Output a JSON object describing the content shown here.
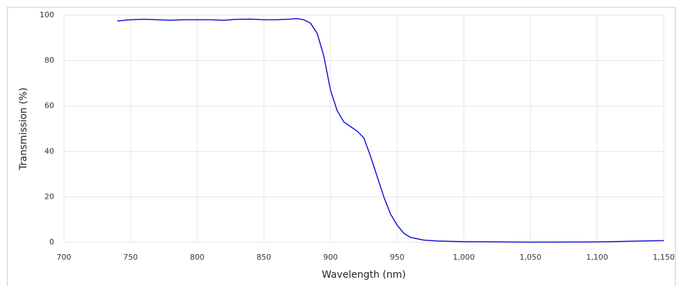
{
  "chart_data": {
    "type": "line",
    "x_label": "Wavelength (nm)",
    "y_label": "Transmission (%)",
    "xlim": [
      700,
      1150
    ],
    "ylim": [
      0,
      100
    ],
    "xticks": [
      700,
      750,
      800,
      850,
      900,
      950,
      {
        "value": 1000,
        "label": "1,000"
      },
      {
        "value": 1050,
        "label": "1,050"
      },
      {
        "value": 1100,
        "label": "1,100"
      },
      {
        "value": 1150,
        "label": "1,150"
      }
    ],
    "yticks": [
      0,
      20,
      40,
      60,
      80,
      100
    ],
    "grid": true,
    "x": [
      740,
      750,
      760,
      770,
      780,
      790,
      800,
      810,
      820,
      830,
      840,
      850,
      860,
      870,
      875,
      880,
      885,
      890,
      895,
      900,
      905,
      910,
      915,
      920,
      925,
      930,
      935,
      940,
      945,
      950,
      955,
      960,
      970,
      980,
      1000,
      1050,
      1100,
      1150
    ],
    "series": [
      {
        "color": "#1010d8",
        "values": [
          97.5,
          98,
          98.2,
          98,
          97.8,
          98,
          98,
          98,
          97.8,
          98.2,
          98.3,
          98,
          98,
          98.3,
          98.5,
          98,
          96.5,
          92,
          82,
          67,
          58,
          53,
          51,
          49,
          46,
          38,
          29,
          20,
          12.5,
          7.6,
          4,
          2.2,
          1,
          0.6,
          0.3,
          0.1,
          0.2,
          0.8
        ]
      }
    ]
  }
}
